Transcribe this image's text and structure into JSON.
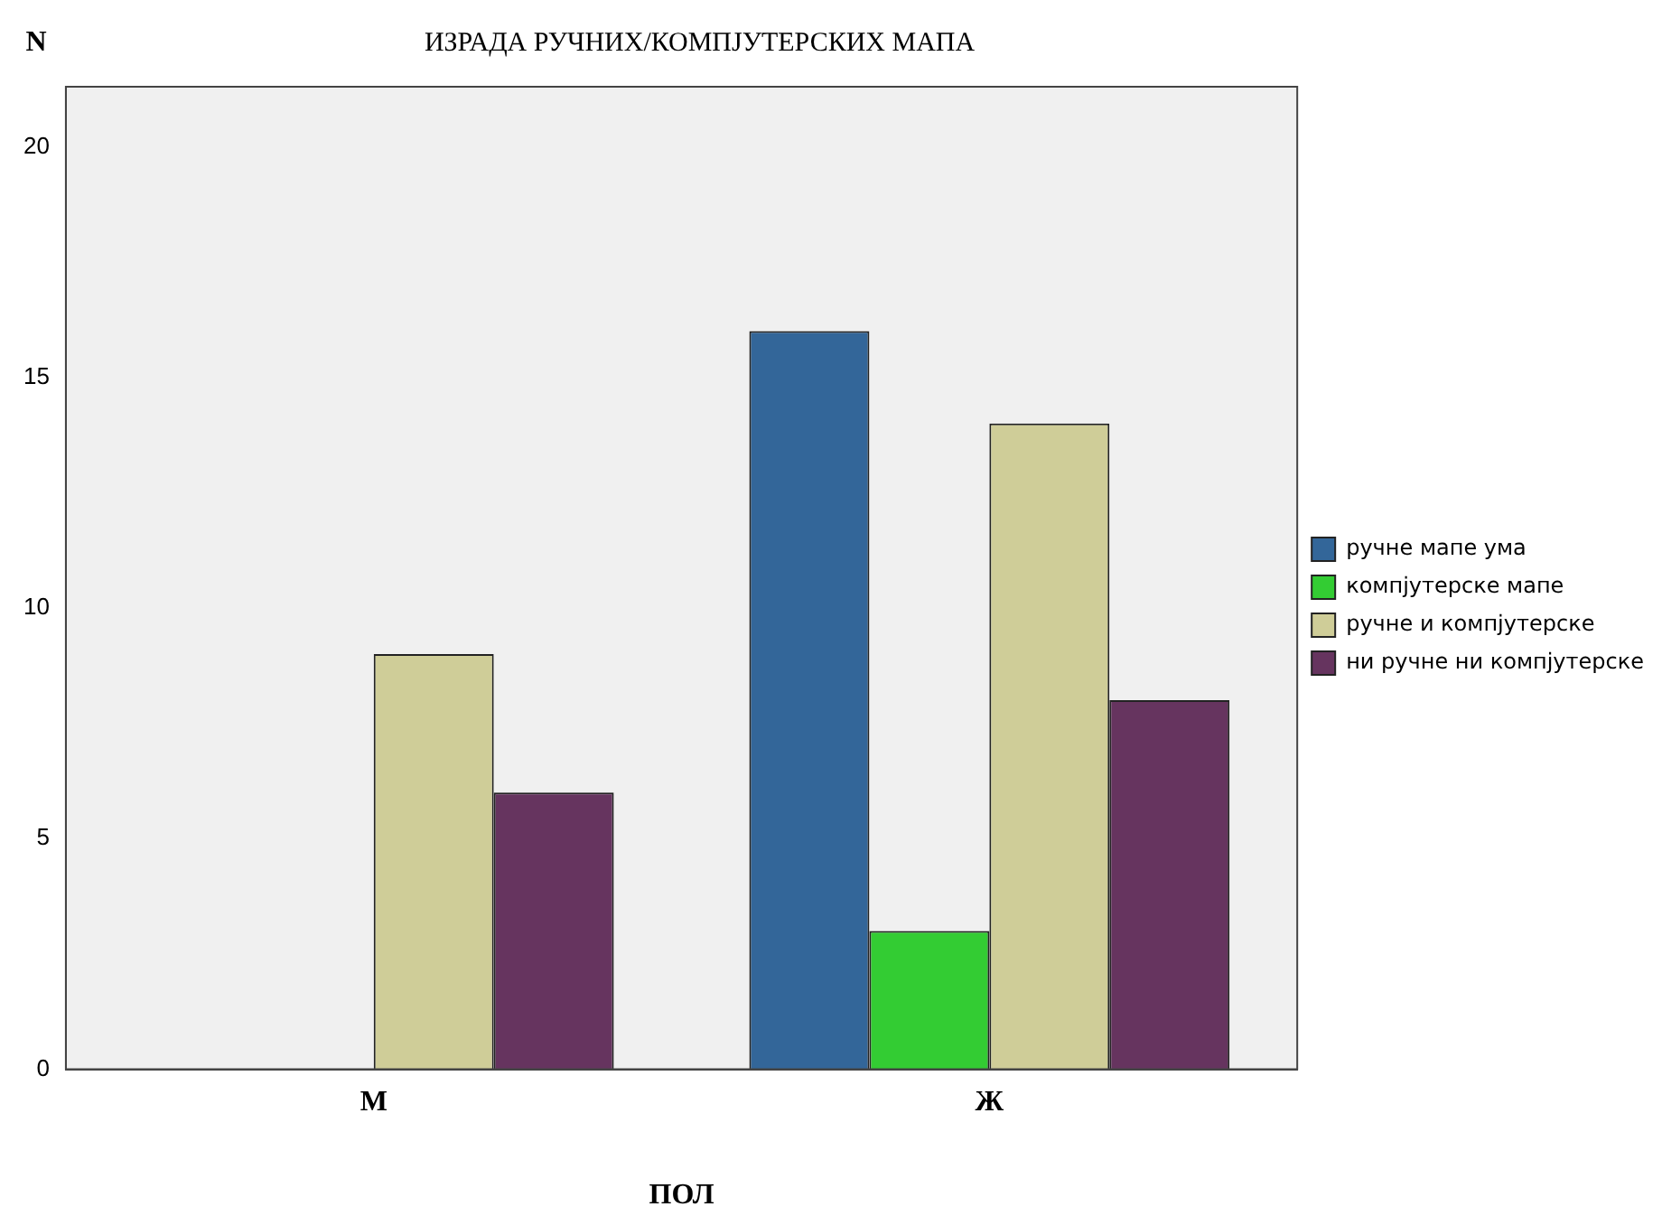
{
  "chart_data": {
    "type": "bar",
    "title": "ИЗРАДА РУЧНИХ/КОМПЈУТЕРСКИХ МАПА",
    "xlabel": "ПОЛ",
    "ylabel": "N",
    "categories": [
      "М",
      "Ж"
    ],
    "series": [
      {
        "name": "ручне мапе ума",
        "color": "#336699",
        "values": [
          0,
          16
        ]
      },
      {
        "name": "компјутерске мапе",
        "color": "#33cc33",
        "values": [
          0,
          3
        ]
      },
      {
        "name": "ручне и компјутерске",
        "color": "#cfcd98",
        "values": [
          9,
          14
        ]
      },
      {
        "name": "ни ручне ни компјутерске",
        "color": "#66345f",
        "values": [
          6,
          8
        ]
      }
    ],
    "ylim": [
      0,
      21.3
    ],
    "yticks": [
      0,
      5,
      10,
      15,
      20
    ],
    "grid": false,
    "legend": "right"
  }
}
